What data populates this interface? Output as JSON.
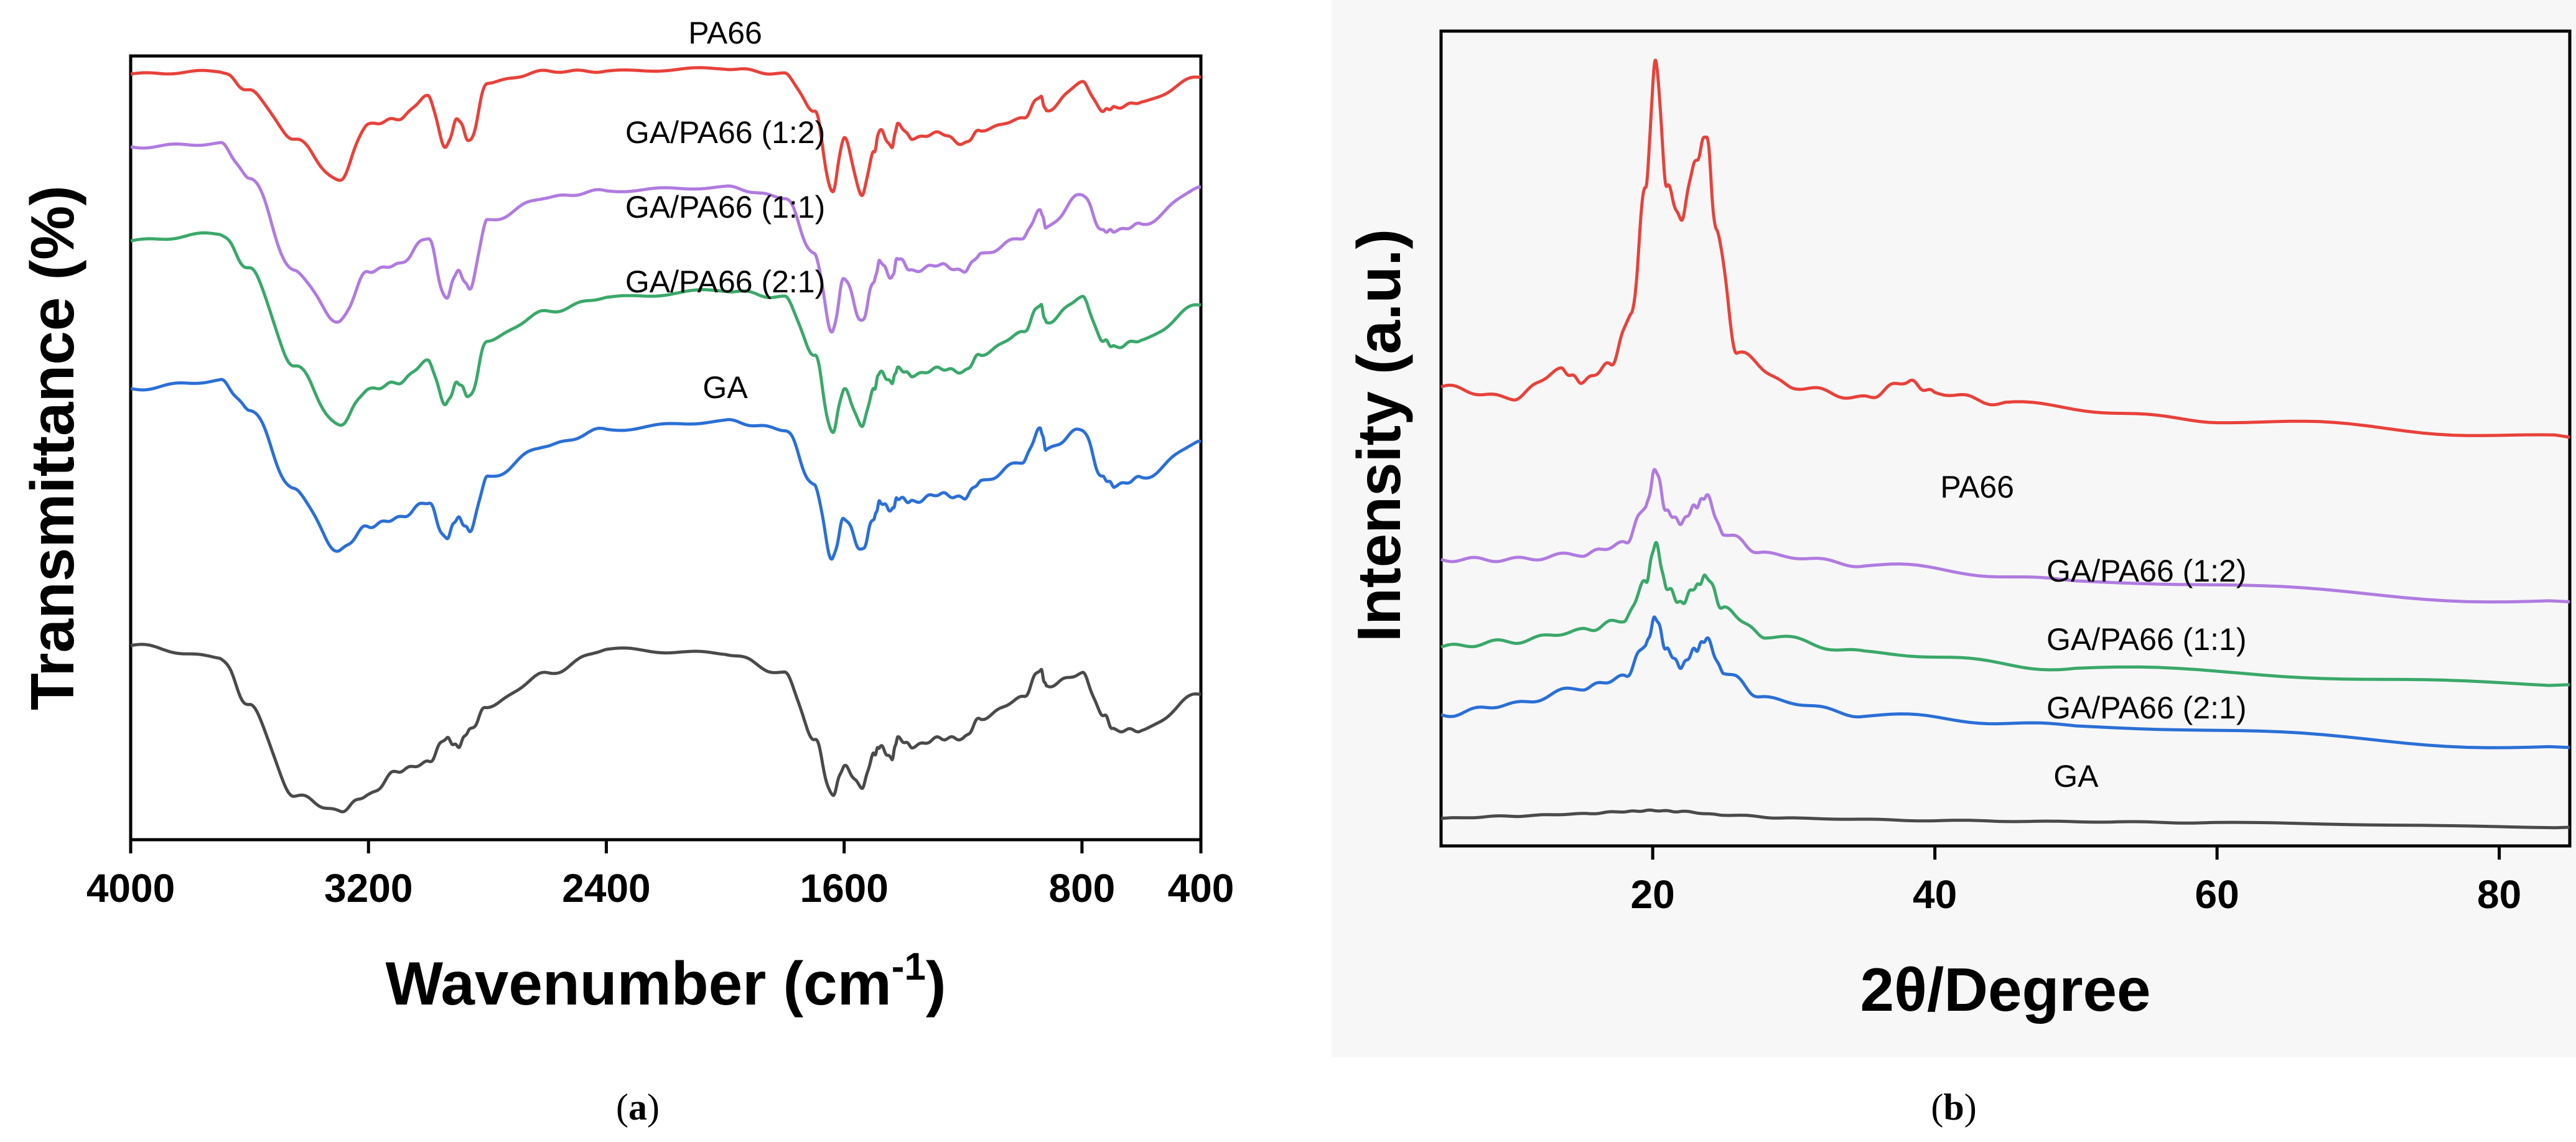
{
  "chart_data": [
    {
      "id": "a",
      "type": "line",
      "caption_letter": "a",
      "xlabel": "Wavenumber (cm",
      "xlabel_sup": "-1",
      "xlabel_close": ")",
      "ylabel": "Transmittance (%)",
      "xlim": [
        4000,
        400
      ],
      "x_reversed": true,
      "xticks": [
        4000,
        3200,
        2400,
        1600,
        800,
        400
      ],
      "yticks_shown": false,
      "y_units": "arbitrary (stacked, offset)",
      "grid": false,
      "series": [
        {
          "name": "PA66",
          "color": "#e8413a",
          "label_at": 2000,
          "offset": 0,
          "points": [
            [
              4000,
              0.98
            ],
            [
              3700,
              0.99
            ],
            [
              3600,
              0.92
            ],
            [
              3450,
              0.75
            ],
            [
              3300,
              0.6
            ],
            [
              3200,
              0.8
            ],
            [
              3100,
              0.82
            ],
            [
              3000,
              0.9
            ],
            [
              2940,
              0.72
            ],
            [
              2900,
              0.82
            ],
            [
              2860,
              0.74
            ],
            [
              2800,
              0.95
            ],
            [
              2600,
              0.99
            ],
            [
              2400,
              0.99
            ],
            [
              2000,
              1.0
            ],
            [
              1800,
              0.98
            ],
            [
              1700,
              0.85
            ],
            [
              1640,
              0.56
            ],
            [
              1600,
              0.75
            ],
            [
              1540,
              0.55
            ],
            [
              1500,
              0.7
            ],
            [
              1480,
              0.78
            ],
            [
              1440,
              0.72
            ],
            [
              1420,
              0.8
            ],
            [
              1370,
              0.75
            ],
            [
              1280,
              0.77
            ],
            [
              1200,
              0.73
            ],
            [
              1140,
              0.78
            ],
            [
              1000,
              0.82
            ],
            [
              940,
              0.9
            ],
            [
              920,
              0.85
            ],
            [
              800,
              0.95
            ],
            [
              730,
              0.85
            ],
            [
              690,
              0.86
            ],
            [
              600,
              0.88
            ],
            [
              400,
              0.97
            ]
          ]
        },
        {
          "name": "GA/PA66 (1:2)",
          "color": "#b07be0",
          "label_at": 2000,
          "offset": 0,
          "points": [
            [
              4000,
              0.97
            ],
            [
              3700,
              0.98
            ],
            [
              3600,
              0.88
            ],
            [
              3450,
              0.6
            ],
            [
              3300,
              0.45
            ],
            [
              3200,
              0.6
            ],
            [
              3100,
              0.62
            ],
            [
              3000,
              0.7
            ],
            [
              2940,
              0.52
            ],
            [
              2900,
              0.6
            ],
            [
              2860,
              0.55
            ],
            [
              2800,
              0.75
            ],
            [
              2600,
              0.82
            ],
            [
              2400,
              0.84
            ],
            [
              2000,
              0.85
            ],
            [
              1800,
              0.82
            ],
            [
              1700,
              0.65
            ],
            [
              1640,
              0.42
            ],
            [
              1600,
              0.58
            ],
            [
              1540,
              0.45
            ],
            [
              1500,
              0.57
            ],
            [
              1480,
              0.63
            ],
            [
              1440,
              0.58
            ],
            [
              1420,
              0.64
            ],
            [
              1370,
              0.6
            ],
            [
              1280,
              0.62
            ],
            [
              1200,
              0.6
            ],
            [
              1140,
              0.65
            ],
            [
              1000,
              0.7
            ],
            [
              940,
              0.78
            ],
            [
              920,
              0.73
            ],
            [
              800,
              0.83
            ],
            [
              730,
              0.72
            ],
            [
              690,
              0.72
            ],
            [
              600,
              0.74
            ],
            [
              400,
              0.85
            ]
          ]
        },
        {
          "name": "GA/PA66 (1:1)",
          "color": "#3aa86a",
          "label_at": 2000,
          "offset": 0,
          "points": [
            [
              4000,
              0.9
            ],
            [
              3700,
              0.92
            ],
            [
              3600,
              0.82
            ],
            [
              3450,
              0.55
            ],
            [
              3300,
              0.38
            ],
            [
              3200,
              0.48
            ],
            [
              3100,
              0.5
            ],
            [
              3000,
              0.56
            ],
            [
              2940,
              0.44
            ],
            [
              2900,
              0.5
            ],
            [
              2860,
              0.46
            ],
            [
              2800,
              0.62
            ],
            [
              2600,
              0.7
            ],
            [
              2400,
              0.74
            ],
            [
              2000,
              0.76
            ],
            [
              1800,
              0.74
            ],
            [
              1700,
              0.58
            ],
            [
              1640,
              0.36
            ],
            [
              1600,
              0.48
            ],
            [
              1540,
              0.38
            ],
            [
              1500,
              0.48
            ],
            [
              1480,
              0.53
            ],
            [
              1440,
              0.5
            ],
            [
              1420,
              0.54
            ],
            [
              1370,
              0.52
            ],
            [
              1280,
              0.54
            ],
            [
              1200,
              0.53
            ],
            [
              1140,
              0.58
            ],
            [
              1000,
              0.64
            ],
            [
              940,
              0.72
            ],
            [
              920,
              0.67
            ],
            [
              800,
              0.74
            ],
            [
              730,
              0.62
            ],
            [
              690,
              0.6
            ],
            [
              600,
              0.62
            ],
            [
              400,
              0.72
            ]
          ]
        },
        {
          "name": "GA/PA66 (2:1)",
          "color": "#2a6fd6",
          "label_at": 2000,
          "offset": 0,
          "points": [
            [
              4000,
              0.7
            ],
            [
              3700,
              0.72
            ],
            [
              3600,
              0.65
            ],
            [
              3450,
              0.45
            ],
            [
              3300,
              0.3
            ],
            [
              3200,
              0.36
            ],
            [
              3100,
              0.38
            ],
            [
              3000,
              0.42
            ],
            [
              2940,
              0.33
            ],
            [
              2900,
              0.38
            ],
            [
              2860,
              0.35
            ],
            [
              2800,
              0.48
            ],
            [
              2600,
              0.56
            ],
            [
              2400,
              0.6
            ],
            [
              2000,
              0.62
            ],
            [
              1800,
              0.6
            ],
            [
              1700,
              0.46
            ],
            [
              1640,
              0.28
            ],
            [
              1600,
              0.38
            ],
            [
              1540,
              0.3
            ],
            [
              1500,
              0.38
            ],
            [
              1480,
              0.42
            ],
            [
              1440,
              0.4
            ],
            [
              1420,
              0.43
            ],
            [
              1370,
              0.42
            ],
            [
              1280,
              0.44
            ],
            [
              1200,
              0.43
            ],
            [
              1140,
              0.47
            ],
            [
              1000,
              0.52
            ],
            [
              940,
              0.6
            ],
            [
              920,
              0.55
            ],
            [
              800,
              0.6
            ],
            [
              730,
              0.48
            ],
            [
              690,
              0.46
            ],
            [
              600,
              0.48
            ],
            [
              400,
              0.57
            ]
          ]
        },
        {
          "name": "GA",
          "color": "#4a4a4a",
          "label_at": 2000,
          "offset": 0,
          "points": [
            [
              4000,
              0.45
            ],
            [
              3700,
              0.42
            ],
            [
              3600,
              0.3
            ],
            [
              3450,
              0.08
            ],
            [
              3300,
              0.04
            ],
            [
              3200,
              0.08
            ],
            [
              3100,
              0.14
            ],
            [
              3000,
              0.16
            ],
            [
              2940,
              0.22
            ],
            [
              2900,
              0.2
            ],
            [
              2860,
              0.24
            ],
            [
              2800,
              0.3
            ],
            [
              2600,
              0.38
            ],
            [
              2400,
              0.44
            ],
            [
              2000,
              0.43
            ],
            [
              1800,
              0.38
            ],
            [
              1700,
              0.22
            ],
            [
              1640,
              0.08
            ],
            [
              1600,
              0.15
            ],
            [
              1540,
              0.1
            ],
            [
              1500,
              0.18
            ],
            [
              1480,
              0.2
            ],
            [
              1440,
              0.17
            ],
            [
              1420,
              0.22
            ],
            [
              1370,
              0.2
            ],
            [
              1280,
              0.22
            ],
            [
              1200,
              0.22
            ],
            [
              1140,
              0.27
            ],
            [
              1000,
              0.32
            ],
            [
              940,
              0.39
            ],
            [
              920,
              0.35
            ],
            [
              800,
              0.38
            ],
            [
              730,
              0.28
            ],
            [
              690,
              0.24
            ],
            [
              600,
              0.24
            ],
            [
              400,
              0.33
            ]
          ]
        }
      ]
    },
    {
      "id": "b",
      "type": "line",
      "caption_letter": "b",
      "xlabel": "2θ/Degree",
      "ylabel": "Intensity (a.u.)",
      "xlim": [
        5,
        85
      ],
      "x_reversed": false,
      "xticks": [
        20,
        40,
        60,
        80
      ],
      "yticks_shown": false,
      "y_units": "arbitrary (stacked, offset)",
      "grid": false,
      "series": [
        {
          "name": "PA66",
          "color": "#e8413a",
          "label_at": 43,
          "points": [
            [
              5,
              0.42
            ],
            [
              10,
              0.4
            ],
            [
              13.5,
              0.45
            ],
            [
              15,
              0.43
            ],
            [
              17,
              0.46
            ],
            [
              18.5,
              0.55
            ],
            [
              19.5,
              0.78
            ],
            [
              20.2,
              1.0
            ],
            [
              21,
              0.78
            ],
            [
              22,
              0.72
            ],
            [
              23,
              0.82
            ],
            [
              23.8,
              0.87
            ],
            [
              24.5,
              0.7
            ],
            [
              26,
              0.48
            ],
            [
              30,
              0.42
            ],
            [
              35,
              0.4
            ],
            [
              38,
              0.43
            ],
            [
              40,
              0.41
            ],
            [
              45,
              0.39
            ],
            [
              60,
              0.36
            ],
            [
              85,
              0.33
            ]
          ]
        },
        {
          "name": "GA/PA66 (1:2)",
          "color": "#b07be0",
          "label_at": 55,
          "points": [
            [
              5,
              0.33
            ],
            [
              10,
              0.33
            ],
            [
              15,
              0.34
            ],
            [
              18,
              0.36
            ],
            [
              19.5,
              0.43
            ],
            [
              20.2,
              0.5
            ],
            [
              21,
              0.42
            ],
            [
              22,
              0.4
            ],
            [
              23,
              0.43
            ],
            [
              23.8,
              0.45
            ],
            [
              25,
              0.38
            ],
            [
              28,
              0.34
            ],
            [
              35,
              0.32
            ],
            [
              50,
              0.29
            ],
            [
              85,
              0.25
            ]
          ]
        },
        {
          "name": "GA/PA66 (1:1)",
          "color": "#3aa86a",
          "label_at": 55,
          "points": [
            [
              5,
              0.23
            ],
            [
              10,
              0.24
            ],
            [
              15,
              0.26
            ],
            [
              18,
              0.28
            ],
            [
              19.5,
              0.35
            ],
            [
              20.2,
              0.42
            ],
            [
              21,
              0.34
            ],
            [
              22,
              0.31
            ],
            [
              23,
              0.34
            ],
            [
              23.8,
              0.36
            ],
            [
              25,
              0.3
            ],
            [
              28,
              0.25
            ],
            [
              35,
              0.22
            ],
            [
              50,
              0.19
            ],
            [
              85,
              0.16
            ]
          ]
        },
        {
          "name": "GA/PA66 (2:1)",
          "color": "#2a6fd6",
          "label_at": 55,
          "points": [
            [
              5,
              0.15
            ],
            [
              10,
              0.17
            ],
            [
              15,
              0.2
            ],
            [
              18,
              0.22
            ],
            [
              19.5,
              0.28
            ],
            [
              20.2,
              0.33
            ],
            [
              21,
              0.27
            ],
            [
              22,
              0.24
            ],
            [
              23,
              0.27
            ],
            [
              23.8,
              0.29
            ],
            [
              25,
              0.23
            ],
            [
              28,
              0.18
            ],
            [
              35,
              0.15
            ],
            [
              50,
              0.13
            ],
            [
              85,
              0.09
            ]
          ]
        },
        {
          "name": "GA",
          "color": "#4a4a4a",
          "label_at": 50,
          "points": [
            [
              5,
              0.08
            ],
            [
              10,
              0.1
            ],
            [
              15,
              0.12
            ],
            [
              18,
              0.14
            ],
            [
              20,
              0.15
            ],
            [
              22,
              0.14
            ],
            [
              25,
              0.11
            ],
            [
              30,
              0.08
            ],
            [
              40,
              0.06
            ],
            [
              50,
              0.05
            ],
            [
              60,
              0.04
            ],
            [
              85,
              0.0
            ]
          ]
        }
      ]
    }
  ]
}
